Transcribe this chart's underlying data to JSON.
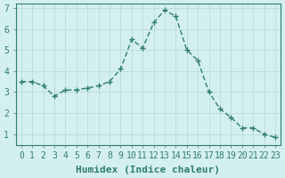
{
  "x": [
    0,
    1,
    2,
    3,
    4,
    5,
    6,
    7,
    8,
    9,
    10,
    11,
    12,
    13,
    14,
    15,
    16,
    17,
    18,
    19,
    20,
    21,
    22,
    23
  ],
  "y": [
    3.5,
    3.5,
    3.3,
    2.8,
    3.1,
    3.1,
    3.2,
    3.3,
    3.5,
    4.1,
    5.5,
    5.1,
    6.3,
    6.9,
    6.6,
    5.0,
    4.5,
    3.0,
    2.2,
    1.8,
    1.3,
    1.3,
    1.0,
    0.85
  ],
  "line_color": "#2e7d6e",
  "marker": "+",
  "background_color": "#d4f0ee",
  "grid_color": "#b0d8d4",
  "xlabel": "Humidex (Indice chaleur)",
  "ylabel": "",
  "xlim": [
    -0.5,
    23.5
  ],
  "ylim": [
    0.5,
    7.2
  ],
  "yticks": [
    1,
    2,
    3,
    4,
    5,
    6,
    7
  ],
  "xticks": [
    0,
    1,
    2,
    3,
    4,
    5,
    6,
    7,
    8,
    9,
    10,
    11,
    12,
    13,
    14,
    15,
    16,
    17,
    18,
    19,
    20,
    21,
    22,
    23
  ],
  "title": "",
  "axis_color": "#2e7d6e",
  "tick_color": "#2e7d6e",
  "xlabel_color": "#2e7d6e",
  "label_fontsize": 8,
  "tick_fontsize": 7
}
